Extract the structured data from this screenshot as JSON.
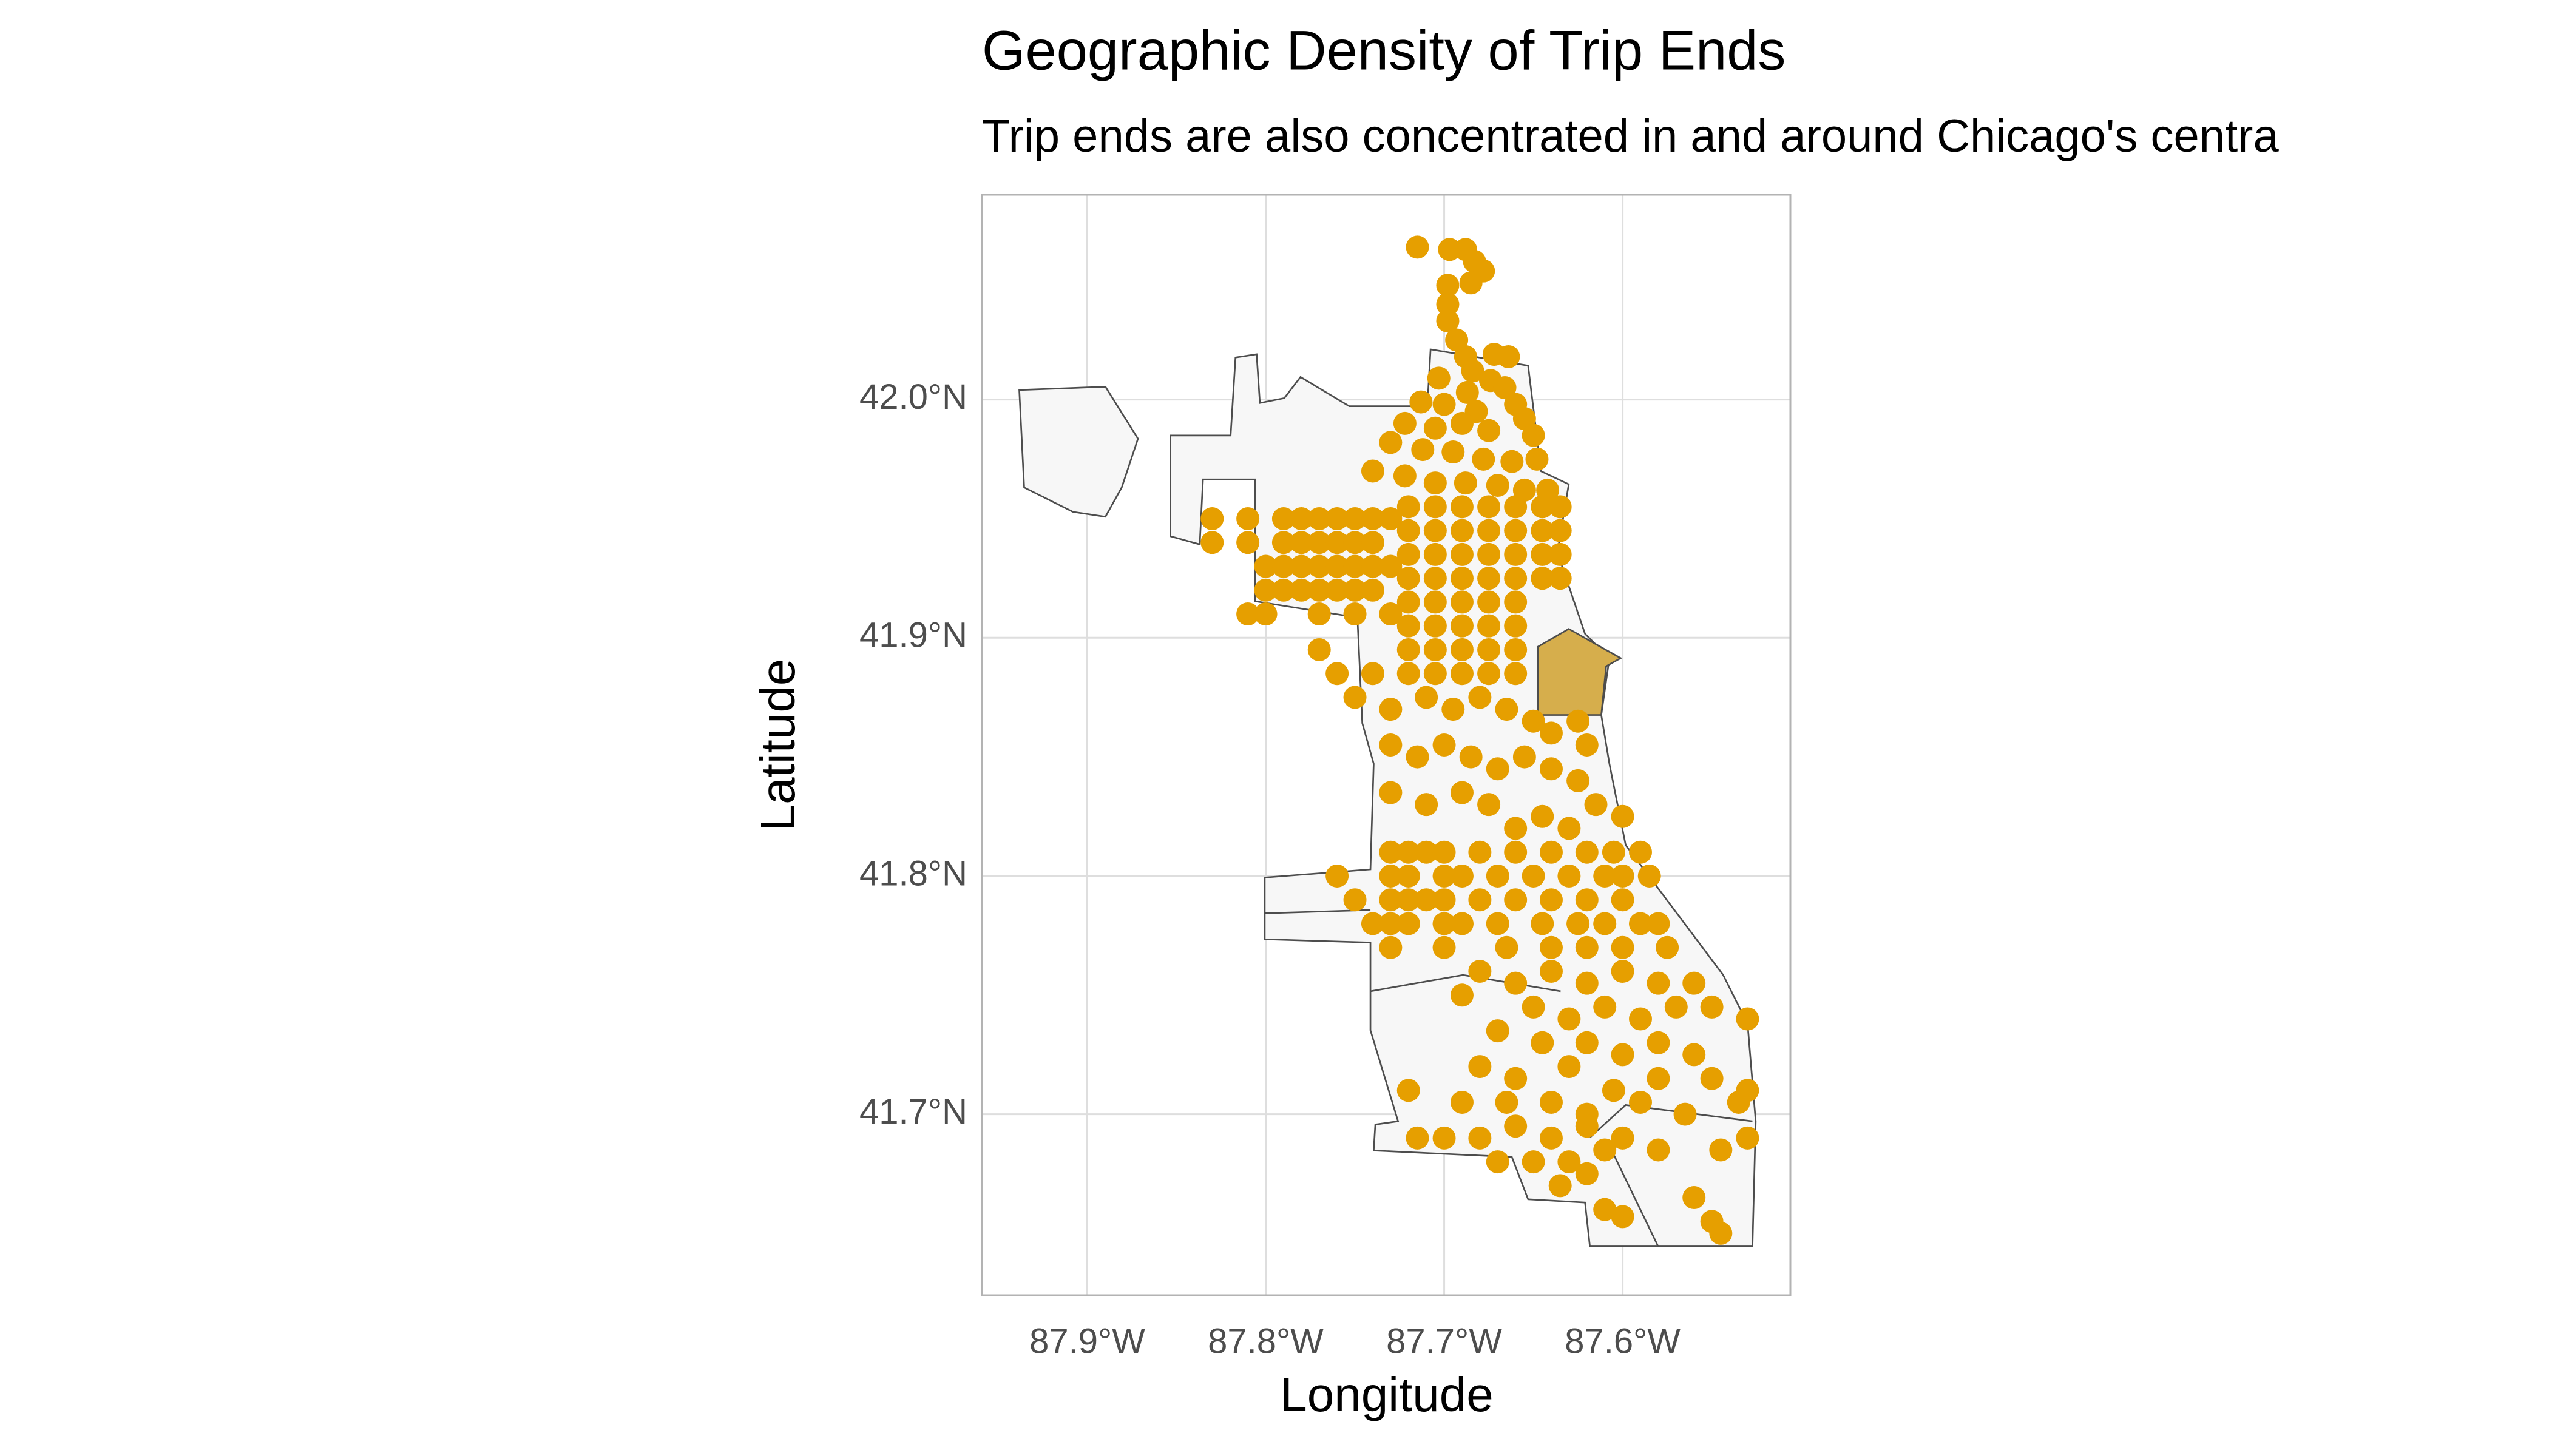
{
  "chart_data": {
    "type": "scatter",
    "title": "Geographic Density of Trip Ends",
    "subtitle": "Trip ends are also concentrated in and around Chicago's centra",
    "x_label": "Longitude",
    "y_label": "Latitude",
    "color": "#e69f00",
    "xlim": [
      -87.959,
      -87.506
    ],
    "ylim": [
      41.624,
      42.086
    ],
    "xticks": [
      {
        "value": -87.9,
        "label": "87.9°W"
      },
      {
        "value": -87.8,
        "label": "87.8°W"
      },
      {
        "value": -87.7,
        "label": "87.7°W"
      },
      {
        "value": -87.6,
        "label": "87.6°W"
      }
    ],
    "yticks": [
      {
        "value": 41.7,
        "label": "41.7°N"
      },
      {
        "value": 41.8,
        "label": "41.8°N"
      },
      {
        "value": 41.9,
        "label": "41.9°N"
      },
      {
        "value": 42.0,
        "label": "42.0°N"
      }
    ],
    "grid": true,
    "x": [
      -87.715,
      -87.697,
      -87.688,
      -87.683,
      -87.678,
      -87.685,
      -87.698,
      -87.698,
      -87.698,
      -87.693,
      -87.688,
      -87.672,
      -87.664,
      -87.684,
      -87.674,
      -87.703,
      -87.687,
      -87.666,
      -87.713,
      -87.7,
      -87.682,
      -87.66,
      -87.722,
      -87.705,
      -87.69,
      -87.675,
      -87.655,
      -87.65,
      -87.73,
      -87.712,
      -87.695,
      -87.678,
      -87.662,
      -87.648,
      -87.74,
      -87.722,
      -87.705,
      -87.688,
      -87.67,
      -87.655,
      -87.642,
      -87.83,
      -87.81,
      -87.79,
      -87.78,
      -87.77,
      -87.76,
      -87.75,
      -87.74,
      -87.73,
      -87.83,
      -87.81,
      -87.79,
      -87.78,
      -87.77,
      -87.76,
      -87.75,
      -87.74,
      -87.8,
      -87.79,
      -87.78,
      -87.77,
      -87.76,
      -87.75,
      -87.74,
      -87.73,
      -87.8,
      -87.79,
      -87.78,
      -87.77,
      -87.76,
      -87.75,
      -87.74,
      -87.81,
      -87.8,
      -87.77,
      -87.75,
      -87.73,
      -87.72,
      -87.705,
      -87.69,
      -87.675,
      -87.66,
      -87.645,
      -87.635,
      -87.72,
      -87.705,
      -87.69,
      -87.675,
      -87.66,
      -87.645,
      -87.635,
      -87.72,
      -87.705,
      -87.69,
      -87.675,
      -87.66,
      -87.645,
      -87.635,
      -87.72,
      -87.705,
      -87.69,
      -87.675,
      -87.66,
      -87.645,
      -87.635,
      -87.72,
      -87.705,
      -87.69,
      -87.675,
      -87.66,
      -87.72,
      -87.705,
      -87.69,
      -87.675,
      -87.66,
      -87.72,
      -87.705,
      -87.69,
      -87.675,
      -87.66,
      -87.72,
      -87.705,
      -87.69,
      -87.675,
      -87.66,
      -87.77,
      -87.76,
      -87.75,
      -87.74,
      -87.73,
      -87.71,
      -87.695,
      -87.68,
      -87.665,
      -87.65,
      -87.64,
      -87.625,
      -87.73,
      -87.715,
      -87.7,
      -87.685,
      -87.67,
      -87.655,
      -87.64,
      -87.625,
      -87.73,
      -87.71,
      -87.69,
      -87.675,
      -87.66,
      -87.645,
      -87.63,
      -87.615,
      -87.6,
      -87.62,
      -87.73,
      -87.72,
      -87.71,
      -87.7,
      -87.68,
      -87.66,
      -87.64,
      -87.62,
      -87.605,
      -87.59,
      -87.76,
      -87.73,
      -87.72,
      -87.7,
      -87.69,
      -87.67,
      -87.65,
      -87.63,
      -87.61,
      -87.6,
      -87.585,
      -87.75,
      -87.73,
      -87.72,
      -87.71,
      -87.7,
      -87.68,
      -87.66,
      -87.64,
      -87.62,
      -87.6,
      -87.74,
      -87.73,
      -87.72,
      -87.7,
      -87.69,
      -87.67,
      -87.645,
      -87.625,
      -87.61,
      -87.59,
      -87.58,
      -87.73,
      -87.7,
      -87.665,
      -87.64,
      -87.62,
      -87.6,
      -87.575,
      -87.68,
      -87.66,
      -87.64,
      -87.62,
      -87.6,
      -87.58,
      -87.56,
      -87.69,
      -87.65,
      -87.63,
      -87.61,
      -87.59,
      -87.57,
      -87.55,
      -87.53,
      -87.67,
      -87.645,
      -87.62,
      -87.6,
      -87.58,
      -87.56,
      -87.68,
      -87.66,
      -87.63,
      -87.605,
      -87.58,
      -87.55,
      -87.53,
      -87.72,
      -87.69,
      -87.665,
      -87.64,
      -87.62,
      -87.59,
      -87.565,
      -87.535,
      -87.715,
      -87.7,
      -87.68,
      -87.66,
      -87.64,
      -87.62,
      -87.6,
      -87.58,
      -87.53,
      -87.67,
      -87.65,
      -87.63,
      -87.61,
      -87.545,
      -87.635,
      -87.62,
      -87.61,
      -87.6,
      -87.56,
      -87.55,
      -87.545
    ],
    "values": [
      42.064,
      42.063,
      42.063,
      42.058,
      42.054,
      42.049,
      42.048,
      42.04,
      42.033,
      42.025,
      42.018,
      42.019,
      42.018,
      42.012,
      42.008,
      42.009,
      42.003,
      42.005,
      41.999,
      41.998,
      41.995,
      41.998,
      41.99,
      41.988,
      41.99,
      41.987,
      41.992,
      41.985,
      41.982,
      41.979,
      41.978,
      41.975,
      41.974,
      41.975,
      41.97,
      41.968,
      41.965,
      41.965,
      41.964,
      41.962,
      41.962,
      41.95,
      41.95,
      41.95,
      41.95,
      41.95,
      41.95,
      41.95,
      41.95,
      41.95,
      41.94,
      41.94,
      41.94,
      41.94,
      41.94,
      41.94,
      41.94,
      41.94,
      41.93,
      41.93,
      41.93,
      41.93,
      41.93,
      41.93,
      41.93,
      41.93,
      41.92,
      41.92,
      41.92,
      41.92,
      41.92,
      41.92,
      41.92,
      41.91,
      41.91,
      41.91,
      41.91,
      41.91,
      41.955,
      41.955,
      41.955,
      41.955,
      41.955,
      41.955,
      41.955,
      41.945,
      41.945,
      41.945,
      41.945,
      41.945,
      41.945,
      41.945,
      41.935,
      41.935,
      41.935,
      41.935,
      41.935,
      41.935,
      41.935,
      41.925,
      41.925,
      41.925,
      41.925,
      41.925,
      41.925,
      41.925,
      41.915,
      41.915,
      41.915,
      41.915,
      41.915,
      41.905,
      41.905,
      41.905,
      41.905,
      41.905,
      41.895,
      41.895,
      41.895,
      41.895,
      41.895,
      41.885,
      41.885,
      41.885,
      41.885,
      41.885,
      41.895,
      41.885,
      41.875,
      41.885,
      41.87,
      41.875,
      41.87,
      41.875,
      41.87,
      41.865,
      41.86,
      41.865,
      41.855,
      41.85,
      41.855,
      41.85,
      41.845,
      41.85,
      41.845,
      41.84,
      41.835,
      41.83,
      41.835,
      41.83,
      41.82,
      41.825,
      41.82,
      41.83,
      41.825,
      41.855,
      41.81,
      41.81,
      41.81,
      41.81,
      41.81,
      41.81,
      41.81,
      41.81,
      41.81,
      41.81,
      41.8,
      41.8,
      41.8,
      41.8,
      41.8,
      41.8,
      41.8,
      41.8,
      41.8,
      41.8,
      41.8,
      41.79,
      41.79,
      41.79,
      41.79,
      41.79,
      41.79,
      41.79,
      41.79,
      41.79,
      41.79,
      41.78,
      41.78,
      41.78,
      41.78,
      41.78,
      41.78,
      41.78,
      41.78,
      41.78,
      41.78,
      41.78,
      41.77,
      41.77,
      41.77,
      41.77,
      41.77,
      41.77,
      41.77,
      41.76,
      41.755,
      41.76,
      41.755,
      41.76,
      41.755,
      41.755,
      41.75,
      41.745,
      41.74,
      41.745,
      41.74,
      41.745,
      41.745,
      41.74,
      41.735,
      41.73,
      41.73,
      41.725,
      41.73,
      41.725,
      41.72,
      41.715,
      41.72,
      41.71,
      41.715,
      41.715,
      41.71,
      41.71,
      41.705,
      41.705,
      41.705,
      41.7,
      41.705,
      41.7,
      41.705,
      41.69,
      41.69,
      41.69,
      41.695,
      41.69,
      41.695,
      41.69,
      41.685,
      41.69,
      41.68,
      41.68,
      41.68,
      41.685,
      41.685,
      41.67,
      41.675,
      41.66,
      41.657,
      41.665,
      41.655,
      41.65
    ]
  }
}
